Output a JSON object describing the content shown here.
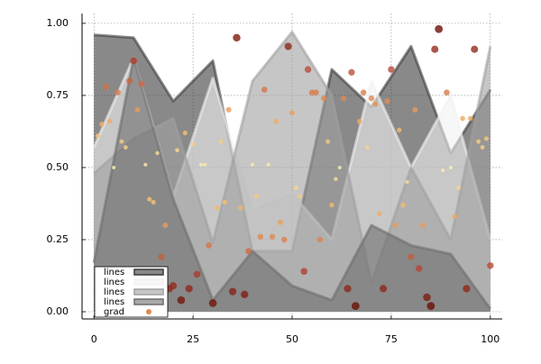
{
  "chart_data": {
    "type": "line",
    "x": [
      0,
      10,
      20,
      30,
      40,
      50,
      60,
      70,
      80,
      90,
      100
    ],
    "series": [
      {
        "name": "lines",
        "color": "#3a3a3a",
        "values": [
          0.96,
          0.95,
          0.73,
          0.87,
          0.21,
          0.21,
          0.84,
          0.71,
          0.92,
          0.55,
          0.77
        ]
      },
      {
        "name": "lines",
        "color": "#f2f2f2",
        "values": [
          0.57,
          0.88,
          0.4,
          0.81,
          0.35,
          0.41,
          0.25,
          0.8,
          0.5,
          0.75,
          0.25
        ]
      },
      {
        "name": "lines",
        "color": "#a0a0a0",
        "values": [
          0.48,
          0.6,
          0.67,
          0.24,
          0.8,
          0.97,
          0.75,
          0.1,
          0.5,
          0.25,
          0.92
        ]
      },
      {
        "name": "lines",
        "color": "#6e6e6e",
        "values": [
          0.17,
          0.88,
          0.39,
          0.04,
          0.21,
          0.09,
          0.04,
          0.3,
          0.23,
          0.2,
          0.01
        ]
      }
    ],
    "scatter": {
      "name": "grad",
      "gradient": [
        "#fff0b0",
        "#f7c070",
        "#e08850",
        "#b04030",
        "#6a1005"
      ],
      "x": [
        1,
        2,
        3,
        4,
        5,
        6,
        7,
        8,
        9,
        10,
        11,
        12,
        13,
        14,
        15,
        16,
        17,
        18,
        19,
        20,
        21,
        22,
        23,
        24,
        25,
        26,
        27,
        28,
        29,
        30,
        31,
        32,
        33,
        34,
        35,
        36,
        37,
        38,
        39,
        40,
        41,
        42,
        43,
        44,
        45,
        46,
        47,
        48,
        49,
        50,
        51,
        52,
        53,
        54,
        55,
        56,
        57,
        58,
        59,
        60,
        61,
        62,
        63,
        64,
        65,
        66,
        67,
        68,
        69,
        70,
        71,
        72,
        73,
        74,
        75,
        76,
        77,
        78,
        79,
        80,
        81,
        82,
        83,
        84,
        85,
        86,
        87,
        88,
        89,
        90,
        91,
        92,
        93,
        94,
        95,
        96,
        97,
        98,
        99,
        100
      ],
      "values": [
        0.61,
        0.65,
        0.78,
        0.66,
        0.5,
        0.76,
        0.59,
        0.57,
        0.8,
        0.87,
        0.7,
        0.79,
        0.51,
        0.39,
        0.38,
        0.55,
        0.19,
        0.3,
        0.08,
        0.09,
        0.56,
        0.04,
        0.62,
        0.08,
        0.58,
        0.13,
        0.51,
        0.51,
        0.23,
        0.03,
        0.36,
        0.59,
        0.38,
        0.7,
        0.07,
        0.95,
        0.36,
        0.06,
        0.21,
        0.51,
        0.4,
        0.26,
        0.77,
        0.51,
        0.26,
        0.66,
        0.31,
        0.25,
        0.92,
        0.69,
        0.43,
        0.4,
        0.14,
        0.84,
        0.76,
        0.76,
        0.25,
        0.74,
        0.59,
        0.37,
        0.46,
        0.5,
        0.74,
        0.08,
        0.83,
        0.02,
        0.66,
        0.76,
        0.57,
        0.74,
        0.72,
        0.34,
        0.08,
        0.73,
        0.84,
        0.3,
        0.63,
        0.37,
        0.45,
        0.19,
        0.7,
        0.15,
        0.3,
        0.05,
        0.02,
        0.91,
        0.98,
        0.49,
        0.76,
        0.5,
        0.33,
        0.43,
        0.67,
        0.08,
        0.67,
        0.91,
        0.59,
        0.57,
        0.6,
        0.16
      ]
    },
    "xlim": [
      -3,
      103
    ],
    "ylim": [
      -0.025,
      1.034
    ],
    "xticks": [
      0,
      25,
      50,
      75,
      100
    ],
    "yticks": [
      {
        "value": 0,
        "label": "0.00"
      },
      {
        "value": 0.25,
        "label": "0.25"
      },
      {
        "value": 0.5,
        "label": "0.50"
      },
      {
        "value": 0.75,
        "label": "0.75"
      },
      {
        "value": 1,
        "label": "1.00"
      }
    ],
    "grid": true,
    "legend": "bottomleft"
  }
}
